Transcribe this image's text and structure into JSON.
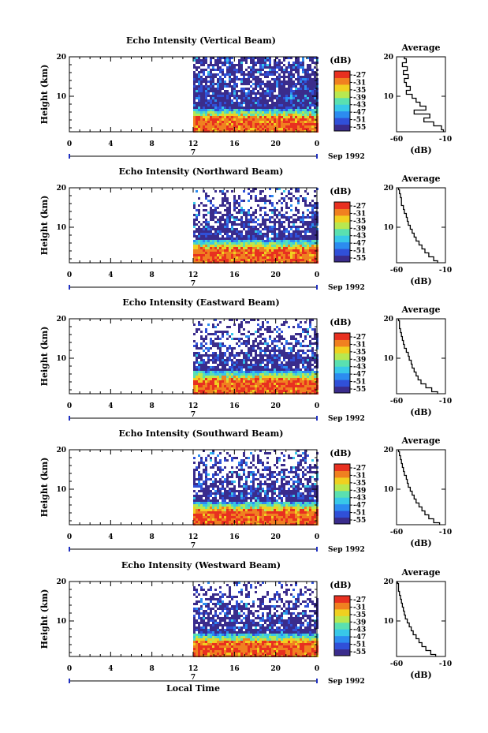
{
  "chart_data": [
    {
      "type": "heatmap",
      "title": "Echo Intensity (Vertical Beam)",
      "ylabel": "Height (km)",
      "xticks": [
        "0",
        "4",
        "8",
        "12",
        "16",
        "20",
        "0"
      ],
      "yticks": [
        "20",
        "10"
      ],
      "ylim": [
        1,
        20
      ],
      "xlim": [
        0,
        24
      ],
      "date_label": "Sep 1992",
      "day_label": "7",
      "data_starts_hour": 12,
      "colorbar": {
        "unit": "(dB)",
        "labels": [
          "-27",
          "-31",
          "-35",
          "-39",
          "-43",
          "-47",
          "-51",
          "-55"
        ]
      },
      "average": {
        "title": "Average",
        "xlabel": "(dB)",
        "xticks": [
          "-60",
          "-10"
        ],
        "yticks": [
          "20",
          "10"
        ],
        "profile": [
          [
            20,
            -52
          ],
          [
            19,
            -50
          ],
          [
            18,
            -54
          ],
          [
            17,
            -49
          ],
          [
            16,
            -53
          ],
          [
            15,
            -48
          ],
          [
            14,
            -52
          ],
          [
            13,
            -50
          ],
          [
            12,
            -46
          ],
          [
            11,
            -50
          ],
          [
            10,
            -44
          ],
          [
            9,
            -40
          ],
          [
            8,
            -36
          ],
          [
            7,
            -30
          ],
          [
            6,
            -42
          ],
          [
            5,
            -26
          ],
          [
            4,
            -32
          ],
          [
            3,
            -22
          ],
          [
            2,
            -14
          ],
          [
            1,
            -12
          ]
        ]
      }
    },
    {
      "type": "heatmap",
      "title": "Echo Intensity (Northward Beam)",
      "ylabel": "Height (km)",
      "xticks": [
        "0",
        "4",
        "8",
        "12",
        "16",
        "20",
        "0"
      ],
      "yticks": [
        "20",
        "10"
      ],
      "ylim": [
        1,
        20
      ],
      "xlim": [
        0,
        24
      ],
      "date_label": "Sep 1992",
      "day_label": "7",
      "data_starts_hour": 12,
      "colorbar": {
        "unit": "(dB)",
        "labels": [
          "-27",
          "-31",
          "-35",
          "-39",
          "-43",
          "-47",
          "-51",
          "-55"
        ]
      },
      "average": {
        "title": "Average",
        "xlabel": "(dB)",
        "xticks": [
          "-60",
          "-10"
        ],
        "yticks": [
          "20",
          "10"
        ],
        "profile": [
          [
            20,
            -58
          ],
          [
            19,
            -57
          ],
          [
            18,
            -56
          ],
          [
            17,
            -55
          ],
          [
            16,
            -55
          ],
          [
            15,
            -53
          ],
          [
            14,
            -52
          ],
          [
            13,
            -50
          ],
          [
            12,
            -49
          ],
          [
            11,
            -48
          ],
          [
            10,
            -46
          ],
          [
            9,
            -44
          ],
          [
            8,
            -42
          ],
          [
            7,
            -40
          ],
          [
            6,
            -37
          ],
          [
            5,
            -34
          ],
          [
            4,
            -31
          ],
          [
            3,
            -27
          ],
          [
            2,
            -22
          ],
          [
            1,
            -18
          ]
        ]
      }
    },
    {
      "type": "heatmap",
      "title": "Echo Intensity (Eastward Beam)",
      "ylabel": "Height (km)",
      "xticks": [
        "0",
        "4",
        "8",
        "12",
        "16",
        "20",
        "0"
      ],
      "yticks": [
        "20",
        "10"
      ],
      "ylim": [
        1,
        20
      ],
      "xlim": [
        0,
        24
      ],
      "date_label": "Sep 1992",
      "day_label": "7",
      "data_starts_hour": 12,
      "colorbar": {
        "unit": "(dB)",
        "labels": [
          "-27",
          "-31",
          "-35",
          "-39",
          "-43",
          "-47",
          "-51",
          "-55"
        ]
      },
      "average": {
        "title": "Average",
        "xlabel": "(dB)",
        "xticks": [
          "-60",
          "-10"
        ],
        "yticks": [
          "20",
          "10"
        ],
        "profile": [
          [
            20,
            -58
          ],
          [
            19,
            -57
          ],
          [
            18,
            -57
          ],
          [
            17,
            -56
          ],
          [
            16,
            -55
          ],
          [
            15,
            -54
          ],
          [
            14,
            -53
          ],
          [
            13,
            -52
          ],
          [
            12,
            -50
          ],
          [
            11,
            -48
          ],
          [
            10,
            -47
          ],
          [
            9,
            -45
          ],
          [
            8,
            -44
          ],
          [
            7,
            -42
          ],
          [
            6,
            -40
          ],
          [
            5,
            -38
          ],
          [
            4,
            -35
          ],
          [
            3,
            -30
          ],
          [
            2,
            -24
          ],
          [
            1,
            -18
          ]
        ]
      }
    },
    {
      "type": "heatmap",
      "title": "Echo Intensity (Southward Beam)",
      "ylabel": "Height (km)",
      "xticks": [
        "0",
        "4",
        "8",
        "12",
        "16",
        "20",
        "0"
      ],
      "yticks": [
        "20",
        "10"
      ],
      "ylim": [
        1,
        20
      ],
      "xlim": [
        0,
        24
      ],
      "date_label": "Sep 1992",
      "day_label": "7",
      "data_starts_hour": 12,
      "colorbar": {
        "unit": "(dB)",
        "labels": [
          "-27",
          "-31",
          "-35",
          "-39",
          "-43",
          "-47",
          "-51",
          "-55"
        ]
      },
      "average": {
        "title": "Average",
        "xlabel": "(dB)",
        "xticks": [
          "-60",
          "-10"
        ],
        "yticks": [
          "20",
          "10"
        ],
        "profile": [
          [
            20,
            -58
          ],
          [
            19,
            -57
          ],
          [
            18,
            -56
          ],
          [
            17,
            -55
          ],
          [
            16,
            -54
          ],
          [
            15,
            -53
          ],
          [
            14,
            -52
          ],
          [
            13,
            -50
          ],
          [
            12,
            -49
          ],
          [
            11,
            -48
          ],
          [
            10,
            -46
          ],
          [
            9,
            -44
          ],
          [
            8,
            -42
          ],
          [
            7,
            -40
          ],
          [
            6,
            -37
          ],
          [
            5,
            -34
          ],
          [
            4,
            -31
          ],
          [
            3,
            -27
          ],
          [
            2,
            -22
          ],
          [
            1,
            -16
          ]
        ]
      }
    },
    {
      "type": "heatmap",
      "title": "Echo Intensity (Westward Beam)",
      "ylabel": "Height (km)",
      "xticks": [
        "0",
        "4",
        "8",
        "12",
        "16",
        "20",
        "0"
      ],
      "yticks": [
        "20",
        "10"
      ],
      "ylim": [
        1,
        20
      ],
      "xlim": [
        0,
        24
      ],
      "date_label": "Sep 1992",
      "day_label": "7",
      "data_starts_hour": 12,
      "colorbar": {
        "unit": "(dB)",
        "labels": [
          "-27",
          "-31",
          "-35",
          "-39",
          "-43",
          "-47",
          "-51",
          "-55"
        ]
      },
      "average": {
        "title": "Average",
        "xlabel": "(dB)",
        "xticks": [
          "-60",
          "-10"
        ],
        "yticks": [
          "20",
          "10"
        ],
        "profile": [
          [
            20,
            -59
          ],
          [
            19,
            -58
          ],
          [
            18,
            -58
          ],
          [
            17,
            -57
          ],
          [
            16,
            -56
          ],
          [
            15,
            -55
          ],
          [
            14,
            -54
          ],
          [
            13,
            -53
          ],
          [
            12,
            -52
          ],
          [
            11,
            -51
          ],
          [
            10,
            -49
          ],
          [
            9,
            -47
          ],
          [
            8,
            -45
          ],
          [
            7,
            -43
          ],
          [
            6,
            -40
          ],
          [
            5,
            -37
          ],
          [
            4,
            -34
          ],
          [
            3,
            -30
          ],
          [
            2,
            -25
          ],
          [
            1,
            -20
          ]
        ]
      }
    }
  ],
  "xlabel": "Local Time",
  "colorscale": [
    "#3a2c8c",
    "#3050d8",
    "#2c8cf0",
    "#38c8e8",
    "#5ae0b0",
    "#b8e850",
    "#f0d020",
    "#f08020",
    "#e83020"
  ]
}
